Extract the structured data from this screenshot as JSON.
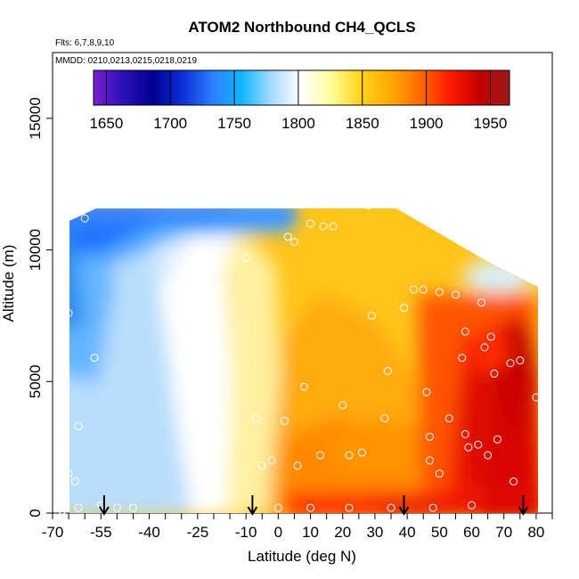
{
  "chart_data": {
    "type": "heatmap",
    "title": "ATOM2 Northbound CH4_QCLS",
    "subtitle_flights": "Flts: 6,7,8,9,10",
    "subtitle_dates": "MMDD: 0210,0213,0215,0218,0219",
    "xlabel": "Latitude (deg N)",
    "ylabel": "Altitude (m)",
    "xlim": [
      -70,
      85
    ],
    "ylim": [
      0,
      17500
    ],
    "x_ticks": [
      -70,
      -55,
      -40,
      -25,
      -10,
      0,
      10,
      20,
      30,
      40,
      50,
      60,
      70,
      80
    ],
    "x_tick_labels": [
      "-70",
      "-55",
      "-40",
      "-25",
      "-10",
      "0",
      "10",
      "20",
      "30",
      "40",
      "50",
      "60",
      "70",
      "80"
    ],
    "y_ticks": [
      0,
      5000,
      10000,
      15000
    ],
    "y_tick_labels": [
      "0",
      "5000",
      "10000",
      "15000"
    ],
    "colorbar": {
      "range": [
        1640,
        1965
      ],
      "ticks": [
        1650,
        1700,
        1750,
        1800,
        1850,
        1900,
        1950
      ],
      "tick_labels": [
        "1650",
        "1700",
        "1750",
        "1800",
        "1850",
        "1900",
        "1950"
      ],
      "colors": [
        "#7a1fd6",
        "#2a10b8",
        "#00008f",
        "#0a2fd8",
        "#2a7fff",
        "#12b6ff",
        "#a9dcff",
        "#ffffff",
        "#ffff99",
        "#ffd21a",
        "#ffaa00",
        "#ff6a00",
        "#ff1a00",
        "#c40000",
        "#9e1a1a"
      ]
    },
    "arrows_lat": [
      -54,
      -8,
      39,
      76
    ],
    "samples": [
      [
        -67,
        12000
      ],
      [
        -66,
        10500
      ],
      [
        -67,
        10000
      ],
      [
        -65,
        7600
      ],
      [
        -66,
        5000
      ],
      [
        -57,
        5900
      ],
      [
        -62,
        3300
      ],
      [
        -65,
        1500
      ],
      [
        -63,
        1200
      ],
      [
        -67,
        100
      ],
      [
        -62,
        200
      ],
      [
        -55,
        300
      ],
      [
        -50,
        200
      ],
      [
        -45,
        200
      ],
      [
        -60,
        11200
      ],
      [
        -57,
        11900
      ],
      [
        -10,
        9700
      ],
      [
        -7,
        3600
      ],
      [
        -5,
        1800
      ],
      [
        -2,
        2000
      ],
      [
        2,
        3500
      ],
      [
        3,
        10500
      ],
      [
        5,
        10300
      ],
      [
        6,
        1800
      ],
      [
        8,
        4800
      ],
      [
        10,
        11000
      ],
      [
        13,
        2200
      ],
      [
        14,
        10900
      ],
      [
        17,
        10900
      ],
      [
        20,
        4100
      ],
      [
        22,
        2200
      ],
      [
        22,
        200
      ],
      [
        26,
        2300
      ],
      [
        28,
        11700
      ],
      [
        29,
        7500
      ],
      [
        33,
        3600
      ],
      [
        34,
        5400
      ],
      [
        35,
        11800
      ],
      [
        39,
        7800
      ],
      [
        42,
        8500
      ],
      [
        45,
        8500
      ],
      [
        46,
        4600
      ],
      [
        47,
        2000
      ],
      [
        47,
        2900
      ],
      [
        50,
        8400
      ],
      [
        50,
        1500
      ],
      [
        53,
        3600
      ],
      [
        55,
        8300
      ],
      [
        57,
        5900
      ],
      [
        58,
        6900
      ],
      [
        58,
        3000
      ],
      [
        59,
        2500
      ],
      [
        60,
        300
      ],
      [
        62,
        2600
      ],
      [
        63,
        8000
      ],
      [
        64,
        6300
      ],
      [
        65,
        2200
      ],
      [
        66,
        6700
      ],
      [
        67,
        5300
      ],
      [
        68,
        2800
      ],
      [
        72,
        5700
      ],
      [
        75,
        5800
      ],
      [
        73,
        1200
      ],
      [
        79,
        8900
      ],
      [
        80,
        4400
      ],
      [
        35,
        200
      ],
      [
        10,
        200
      ],
      [
        0,
        200
      ],
      [
        48,
        200
      ]
    ]
  }
}
